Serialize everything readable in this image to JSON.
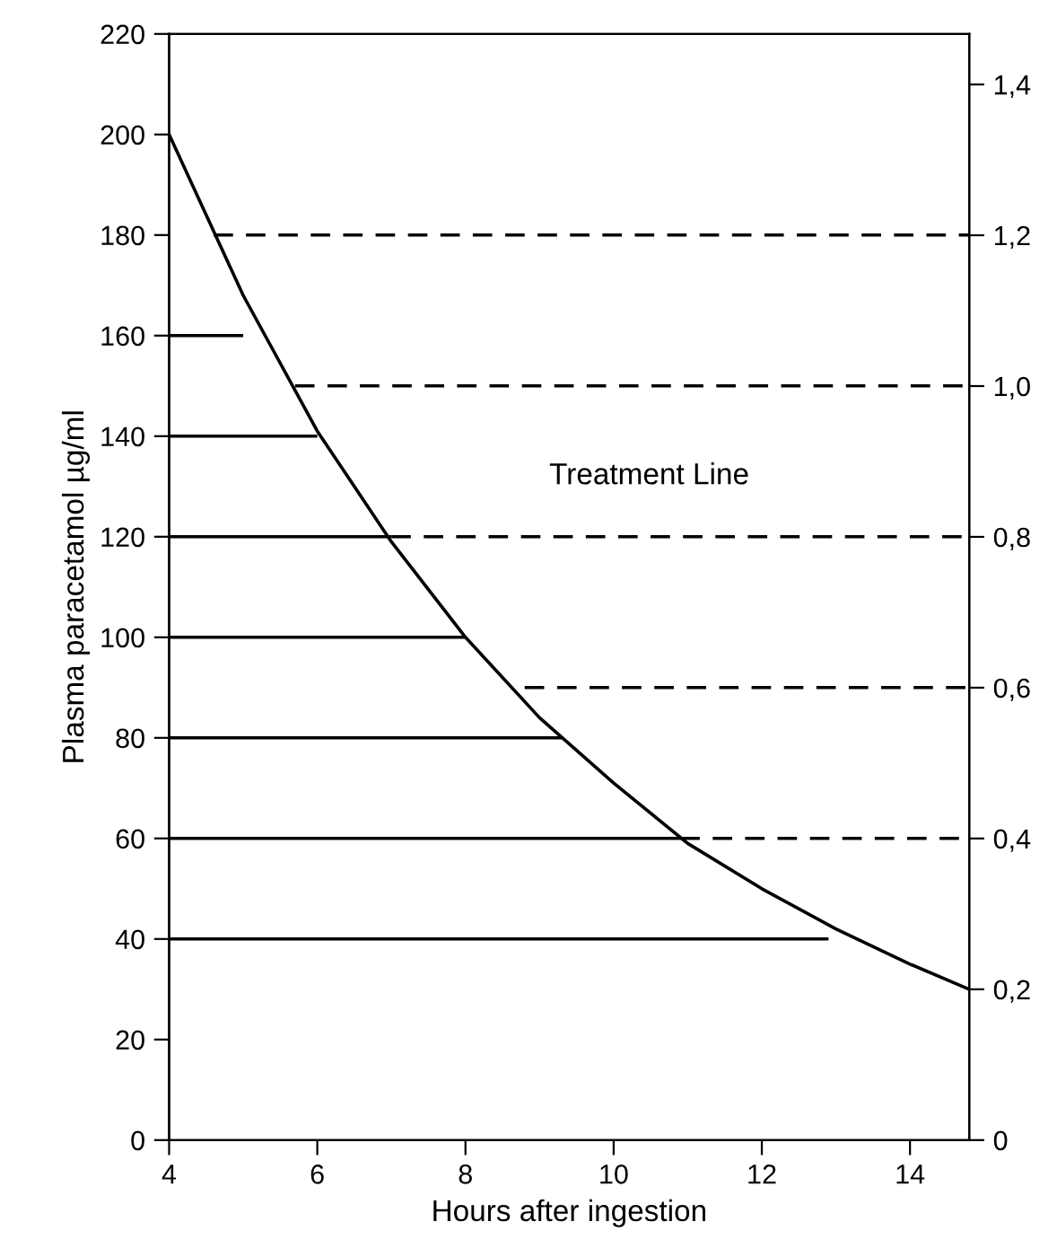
{
  "chart_data": {
    "type": "line",
    "xlabel": "Hours after ingestion",
    "ylabel": "Plasma paracetamol µg/ml",
    "xlim": [
      4,
      14.8
    ],
    "xticks": [
      4,
      6,
      8,
      10,
      12,
      14
    ],
    "ylim": [
      0,
      220
    ],
    "yticks": [
      0,
      20,
      40,
      60,
      80,
      100,
      120,
      140,
      160,
      180,
      200,
      220
    ],
    "y2lim": [
      0,
      1.467
    ],
    "y2ticks": [
      {
        "value": 0,
        "label": "0"
      },
      {
        "value": 0.2,
        "label": "0,2"
      },
      {
        "value": 0.4,
        "label": "0,4"
      },
      {
        "value": 0.6,
        "label": "0,6"
      },
      {
        "value": 0.8,
        "label": "0,8"
      },
      {
        "value": 1.0,
        "label": "1,0"
      },
      {
        "value": 1.2,
        "label": "1,2"
      },
      {
        "value": 1.4,
        "label": "1,4"
      }
    ],
    "grid": false,
    "legend": false,
    "marker": "none",
    "annotations": [
      "Treatment Line"
    ],
    "series": [
      {
        "color": "#000000",
        "line_style": "solid",
        "x": [
          4,
          5,
          6,
          7,
          8,
          9,
          10,
          11,
          12,
          13,
          14,
          14.8
        ],
        "values": [
          200,
          168,
          141,
          119,
          100,
          84,
          71,
          59,
          50,
          42,
          35,
          30
        ]
      },
      {
        "color": "#000000",
        "line_style": "solid",
        "x": [
          4,
          12.9
        ],
        "values": [
          40,
          40
        ]
      },
      {
        "color": "#000000",
        "line_style": "solid",
        "x": [
          4,
          10.9
        ],
        "values": [
          60,
          60
        ]
      },
      {
        "color": "#000000",
        "line_style": "solid",
        "x": [
          4,
          9.3
        ],
        "values": [
          80,
          80
        ]
      },
      {
        "color": "#000000",
        "line_style": "solid",
        "x": [
          4,
          8
        ],
        "values": [
          100,
          100
        ]
      },
      {
        "color": "#000000",
        "line_style": "solid",
        "x": [
          4,
          7
        ],
        "values": [
          120,
          120
        ]
      },
      {
        "color": "#000000",
        "line_style": "solid",
        "x": [
          4,
          6
        ],
        "values": [
          140,
          140
        ]
      },
      {
        "color": "#000000",
        "line_style": "solid",
        "x": [
          4,
          5
        ],
        "values": [
          160,
          160
        ]
      },
      {
        "color": "#000000",
        "line_style": "dashed",
        "x": [
          10.9,
          14.8
        ],
        "values": [
          60,
          60
        ]
      },
      {
        "color": "#000000",
        "line_style": "dashed",
        "x": [
          8.8,
          14.8
        ],
        "values": [
          90,
          90
        ]
      },
      {
        "color": "#000000",
        "line_style": "dashed",
        "x": [
          7,
          14.8
        ],
        "values": [
          120,
          120
        ]
      },
      {
        "color": "#000000",
        "line_style": "dashed",
        "x": [
          5.7,
          14.8
        ],
        "values": [
          150,
          150
        ]
      },
      {
        "color": "#000000",
        "line_style": "dashed",
        "x": [
          4.6,
          14.8
        ],
        "values": [
          180,
          180
        ]
      }
    ]
  }
}
